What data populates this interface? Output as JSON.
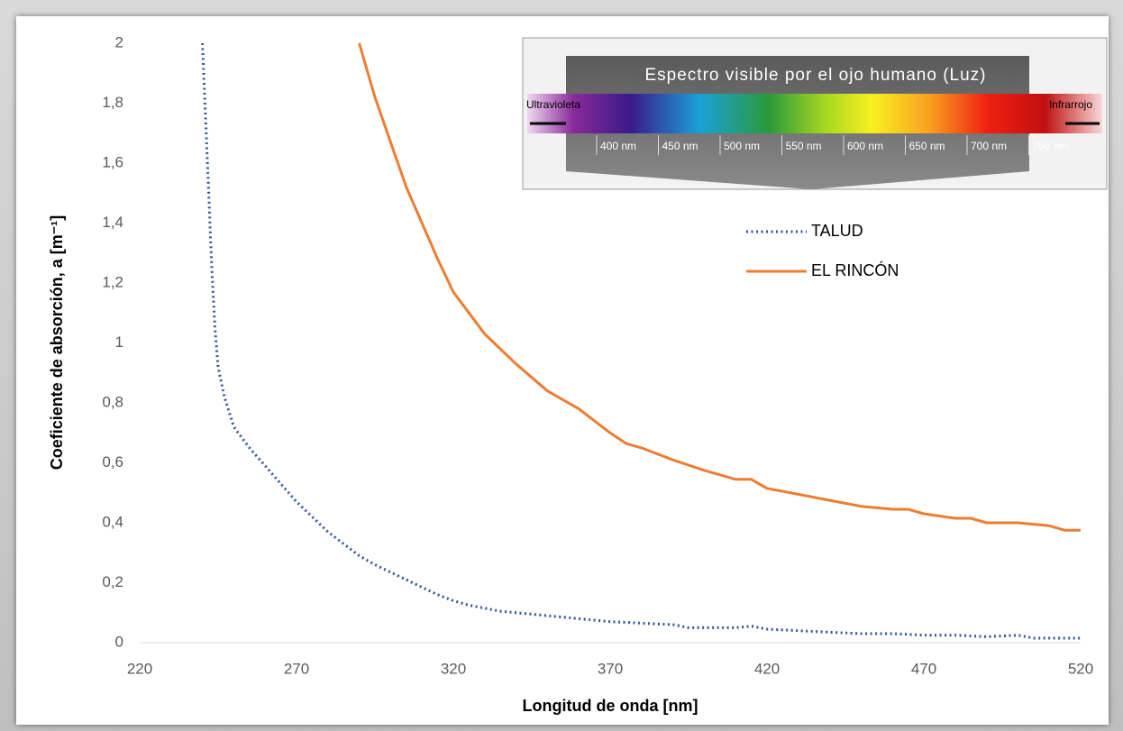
{
  "chart_data": {
    "type": "line",
    "x_label": "Longitud de onda [nm]",
    "y_label": "Coeficiente de absorción, a [m⁻¹]",
    "xlim": [
      220,
      520
    ],
    "xticks": [
      220,
      270,
      320,
      370,
      420,
      470,
      520
    ],
    "ylim": [
      0,
      2
    ],
    "yticks": [
      0,
      {
        "value": 0.2,
        "label": "0,2"
      },
      {
        "value": 0.4,
        "label": "0,4"
      },
      {
        "value": 0.6,
        "label": "0,6"
      },
      {
        "value": 0.8,
        "label": "0,8"
      },
      1,
      {
        "value": 1.2,
        "label": "1,2"
      },
      {
        "value": 1.4,
        "label": "1,4"
      },
      {
        "value": 1.6,
        "label": "1,6"
      },
      {
        "value": 1.8,
        "label": "1,8"
      },
      2
    ],
    "grid": false,
    "legend": "upper right",
    "series": [
      {
        "name": "TALUD",
        "color": "#2f5597",
        "line_style": "dotted",
        "x": [
          240,
          241,
          242,
          243,
          244,
          245,
          247,
          250,
          255,
          260,
          265,
          270,
          275,
          280,
          285,
          290,
          295,
          300,
          305,
          310,
          315,
          320,
          325,
          330,
          335,
          340,
          345,
          350,
          355,
          360,
          370,
          380,
          390,
          395,
          400,
          410,
          415,
          420,
          430,
          440,
          450,
          460,
          470,
          480,
          490,
          500,
          505,
          510,
          520
        ],
        "values": [
          2.0,
          1.75,
          1.5,
          1.25,
          1.05,
          0.92,
          0.82,
          0.72,
          0.65,
          0.59,
          0.53,
          0.47,
          0.42,
          0.37,
          0.33,
          0.29,
          0.26,
          0.235,
          0.21,
          0.185,
          0.16,
          0.14,
          0.125,
          0.115,
          0.105,
          0.1,
          0.095,
          0.09,
          0.085,
          0.08,
          0.07,
          0.065,
          0.06,
          0.05,
          0.05,
          0.05,
          0.055,
          0.045,
          0.04,
          0.035,
          0.03,
          0.03,
          0.025,
          0.025,
          0.02,
          0.025,
          0.015,
          0.015,
          0.015
        ]
      },
      {
        "name": "EL RINCÓN",
        "color": "#ed7d31",
        "line_style": "solid",
        "x": [
          290,
          295,
          300,
          305,
          310,
          315,
          320,
          325,
          330,
          340,
          350,
          360,
          370,
          375,
          380,
          390,
          400,
          410,
          415,
          420,
          430,
          440,
          450,
          460,
          465,
          470,
          480,
          485,
          490,
          500,
          510,
          515,
          520
        ],
        "values": [
          2.0,
          1.82,
          1.67,
          1.52,
          1.4,
          1.28,
          1.17,
          1.1,
          1.03,
          0.93,
          0.84,
          0.78,
          0.7,
          0.665,
          0.65,
          0.61,
          0.575,
          0.545,
          0.545,
          0.515,
          0.495,
          0.475,
          0.455,
          0.445,
          0.445,
          0.43,
          0.415,
          0.415,
          0.4,
          0.4,
          0.39,
          0.375,
          0.375
        ]
      }
    ],
    "inset": {
      "title": "Espectro visible por el ojo humano (Luz)",
      "left_label": "Ultravioleta",
      "right_label": "Infrarrojo",
      "scale_labels": [
        "400 nm",
        "450 nm",
        "500 nm",
        "550 nm",
        "600 nm",
        "650 nm",
        "700 nm",
        "750 nm"
      ]
    }
  }
}
